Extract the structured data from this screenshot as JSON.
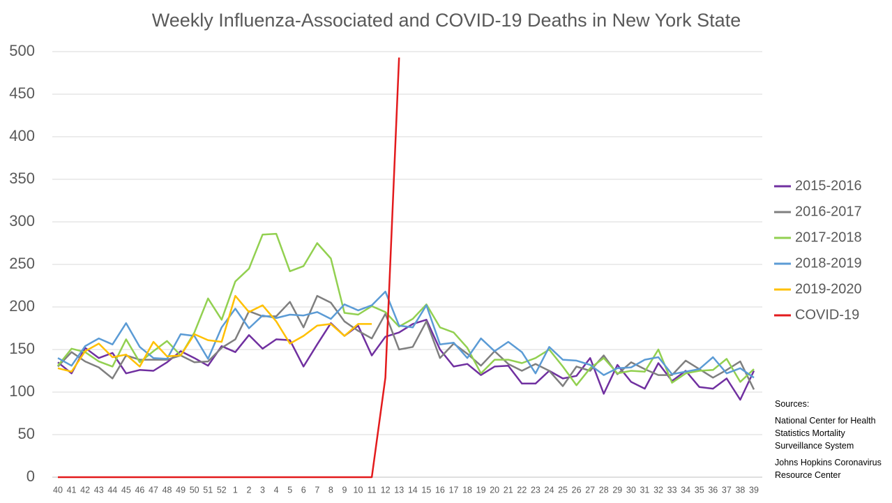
{
  "chart_data": {
    "type": "line",
    "title": "Weekly Influenza-Associated and COVID-19 Deaths in New York State",
    "categories": [
      "40",
      "41",
      "42",
      "43",
      "44",
      "45",
      "46",
      "47",
      "48",
      "49",
      "50",
      "51",
      "52",
      "1",
      "2",
      "3",
      "4",
      "5",
      "6",
      "7",
      "8",
      "9",
      "10",
      "11",
      "12",
      "13",
      "14",
      "15",
      "16",
      "17",
      "18",
      "19",
      "20",
      "21",
      "22",
      "23",
      "24",
      "25",
      "26",
      "27",
      "28",
      "29",
      "30",
      "31",
      "32",
      "33",
      "34",
      "35",
      "36",
      "37",
      "38",
      "39"
    ],
    "series": [
      {
        "name": "2015-2016",
        "color": "#7030a0",
        "values": [
          135,
          122,
          152,
          140,
          146,
          122,
          126,
          125,
          135,
          148,
          140,
          131,
          154,
          147,
          167,
          151,
          162,
          161,
          130,
          156,
          181,
          166,
          178,
          143,
          165,
          170,
          180,
          185,
          150,
          130,
          133,
          120,
          130,
          131,
          110,
          110,
          125,
          116,
          119,
          140,
          98,
          132,
          112,
          104,
          134,
          113,
          125,
          106,
          104,
          116,
          91,
          125
        ]
      },
      {
        "name": "2016-2017",
        "color": "#7f7f7f",
        "values": [
          130,
          147,
          136,
          129,
          116,
          143,
          138,
          138,
          138,
          143,
          135,
          136,
          152,
          162,
          195,
          189,
          189,
          206,
          176,
          213,
          205,
          183,
          172,
          163,
          192,
          150,
          153,
          183,
          140,
          157,
          145,
          131,
          148,
          133,
          125,
          133,
          125,
          107,
          130,
          125,
          143,
          121,
          135,
          127,
          120,
          120,
          137,
          127,
          117,
          126,
          136,
          103
        ]
      },
      {
        "name": "2017-2018",
        "color": "#92d050",
        "values": [
          131,
          151,
          147,
          136,
          130,
          162,
          135,
          148,
          160,
          143,
          170,
          210,
          185,
          230,
          245,
          285,
          286,
          242,
          248,
          275,
          257,
          193,
          191,
          201,
          194,
          177,
          186,
          203,
          176,
          170,
          152,
          122,
          138,
          138,
          134,
          140,
          150,
          130,
          108,
          128,
          140,
          122,
          125,
          124,
          150,
          111,
          122,
          125,
          126,
          139,
          112,
          127
        ]
      },
      {
        "name": "2018-2019",
        "color": "#5b9bd5",
        "values": [
          140,
          131,
          154,
          163,
          156,
          181,
          153,
          140,
          139,
          168,
          166,
          139,
          176,
          198,
          175,
          190,
          187,
          191,
          190,
          194,
          186,
          203,
          196,
          202,
          218,
          178,
          176,
          202,
          156,
          158,
          140,
          163,
          148,
          159,
          147,
          122,
          153,
          138,
          137,
          132,
          120,
          128,
          129,
          138,
          141,
          121,
          124,
          127,
          141,
          122,
          128,
          117
        ]
      },
      {
        "name": "2019-2020",
        "color": "#ffc000",
        "values": [
          128,
          124,
          148,
          157,
          141,
          144,
          130,
          159,
          142,
          143,
          168,
          161,
          159,
          213,
          194,
          202,
          183,
          157,
          166,
          178,
          180,
          166,
          180,
          180,
          null,
          null,
          null,
          null,
          null,
          null,
          null,
          null,
          null,
          null,
          null,
          null,
          null,
          null,
          null,
          null,
          null,
          null,
          null,
          null,
          null,
          null,
          null,
          null,
          null,
          null,
          null,
          null
        ]
      },
      {
        "name": "COVID-19",
        "color": "#e31a1c",
        "values": [
          0,
          0,
          0,
          0,
          0,
          0,
          0,
          0,
          0,
          0,
          0,
          0,
          0,
          0,
          0,
          0,
          0,
          0,
          0,
          0,
          0,
          0,
          0,
          0,
          117,
          493,
          null,
          null,
          null,
          null,
          null,
          null,
          null,
          null,
          null,
          null,
          null,
          null,
          null,
          null,
          null,
          null,
          null,
          null,
          null,
          null,
          null,
          null,
          null,
          null,
          null,
          null
        ]
      }
    ],
    "ylim": [
      0,
      500
    ],
    "yticks": [
      0,
      50,
      100,
      150,
      200,
      250,
      300,
      350,
      400,
      450,
      500
    ],
    "grid": true,
    "legend": "right",
    "annotations": [
      "Sources:",
      "National Center for Health Statistics Mortality Surveillance System",
      "Johns Hopkins Coronavirus Resource Center"
    ]
  }
}
